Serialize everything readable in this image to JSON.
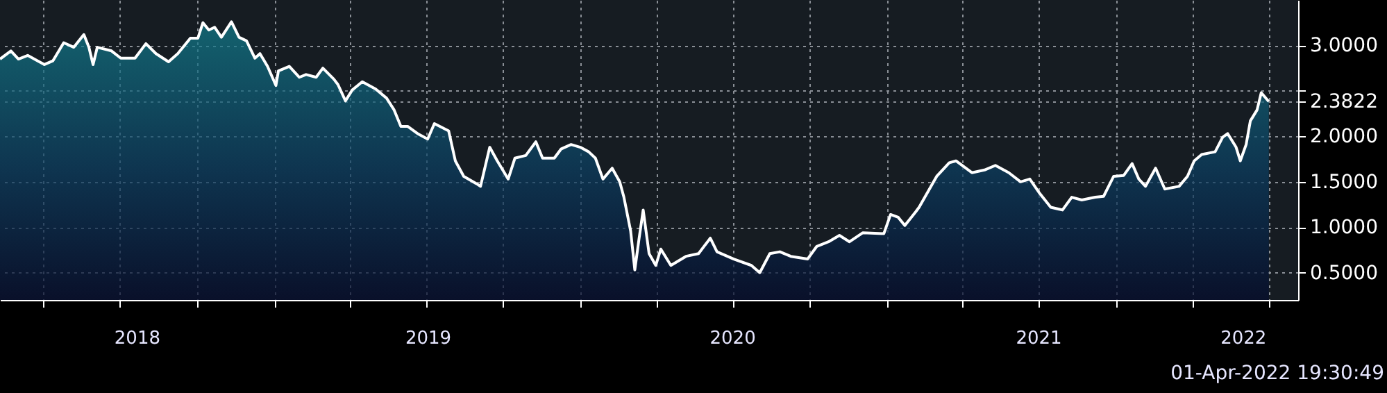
{
  "chart_data": {
    "type": "area",
    "xlim": [
      "2018-02-08",
      "2022-05-06"
    ],
    "ylim": [
      0.2,
      3.5
    ],
    "yticks": [
      {
        "value": 0.5,
        "label": "0.5000"
      },
      {
        "value": 1.0,
        "label": "1.0000"
      },
      {
        "value": 1.5,
        "label": "1.5000"
      },
      {
        "value": 2.0,
        "label": "2.0000"
      },
      {
        "value": 2.3822,
        "label": "2.3822"
      },
      {
        "value": 2.5,
        "label": null
      },
      {
        "value": 3.0,
        "label": "3.0000"
      }
    ],
    "xticks": [
      {
        "value": "2018-04-01",
        "label": null
      },
      {
        "value": "2018-07-01",
        "label": null
      },
      {
        "value": "2018-10-01",
        "label": null
      },
      {
        "value": "2019-01-01",
        "label": null
      },
      {
        "value": "2019-04-01",
        "label": null
      },
      {
        "value": "2019-07-01",
        "label": null
      },
      {
        "value": "2019-10-01",
        "label": null
      },
      {
        "value": "2020-01-01",
        "label": null
      },
      {
        "value": "2020-04-01",
        "label": null
      },
      {
        "value": "2020-07-01",
        "label": null
      },
      {
        "value": "2020-10-01",
        "label": null
      },
      {
        "value": "2021-01-01",
        "label": null
      },
      {
        "value": "2021-04-01",
        "label": null
      },
      {
        "value": "2021-07-01",
        "label": null
      },
      {
        "value": "2021-10-01",
        "label": null
      },
      {
        "value": "2022-01-01",
        "label": null
      },
      {
        "value": "2022-04-01",
        "label": null
      },
      {
        "value": "2018-07-21",
        "label": "2018"
      },
      {
        "value": "2019-07-03",
        "label": "2019"
      },
      {
        "value": "2020-06-30",
        "label": "2020"
      },
      {
        "value": "2021-06-30",
        "label": "2021"
      },
      {
        "value": "2022-03-01",
        "label": "2022"
      }
    ],
    "grid": true,
    "annotations": [
      "01-Apr-2022 19:30:49"
    ],
    "series": [
      {
        "color": "#ffffff",
        "x": [
          "2018-02-08",
          "2018-02-21",
          "2018-03-02",
          "2018-03-13",
          "2018-03-25",
          "2018-04-02",
          "2018-04-12",
          "2018-04-25",
          "2018-05-07",
          "2018-05-19",
          "2018-05-25",
          "2018-05-30",
          "2018-06-04",
          "2018-06-21",
          "2018-07-02",
          "2018-07-19",
          "2018-08-01",
          "2018-08-13",
          "2018-08-28",
          "2018-09-08",
          "2018-09-23",
          "2018-10-02",
          "2018-10-08",
          "2018-10-15",
          "2018-10-22",
          "2018-10-30",
          "2018-11-11",
          "2018-11-20",
          "2018-11-29",
          "2018-12-09",
          "2018-12-15",
          "2018-12-24",
          "2019-01-03",
          "2019-01-06",
          "2019-01-19",
          "2019-01-31",
          "2019-02-08",
          "2019-02-20",
          "2019-02-28",
          "2019-03-13",
          "2019-03-18",
          "2019-03-27",
          "2019-04-04",
          "2019-04-16",
          "2019-05-02",
          "2019-05-15",
          "2019-05-24",
          "2019-06-01",
          "2019-06-09",
          "2019-06-21",
          "2019-07-03",
          "2019-07-11",
          "2019-07-28",
          "2019-08-05",
          "2019-08-15",
          "2019-08-30",
          "2019-09-04",
          "2019-09-15",
          "2019-09-24",
          "2019-10-07",
          "2019-10-15",
          "2019-10-28",
          "2019-11-09",
          "2019-11-17",
          "2019-12-01",
          "2019-12-09",
          "2019-12-21",
          "2020-01-01",
          "2020-01-11",
          "2020-01-19",
          "2020-01-28",
          "2020-02-08",
          "2020-02-17",
          "2020-02-22",
          "2020-03-01",
          "2020-03-06",
          "2020-03-11",
          "2020-03-16",
          "2020-03-23",
          "2020-03-31",
          "2020-04-06",
          "2020-04-18",
          "2020-05-06",
          "2020-05-21",
          "2020-06-04",
          "2020-06-12",
          "2020-07-02",
          "2020-07-23",
          "2020-08-02",
          "2020-08-14",
          "2020-08-26",
          "2020-09-08",
          "2020-09-28",
          "2020-10-09",
          "2020-10-23",
          "2020-11-05",
          "2020-11-17",
          "2020-12-03",
          "2020-12-28",
          "2021-01-05",
          "2021-01-14",
          "2021-01-22",
          "2021-02-04",
          "2021-02-08",
          "2021-02-24",
          "2021-03-01",
          "2021-03-16",
          "2021-03-24",
          "2021-04-12",
          "2021-04-27",
          "2021-05-10",
          "2021-05-26",
          "2021-06-09",
          "2021-06-20",
          "2021-07-02",
          "2021-07-15",
          "2021-07-29",
          "2021-08-09",
          "2021-08-21",
          "2021-09-06",
          "2021-09-16",
          "2021-09-28",
          "2021-10-10",
          "2021-10-20",
          "2021-10-28",
          "2021-11-05",
          "2021-11-17",
          "2021-11-28",
          "2021-12-15",
          "2021-12-25",
          "2022-01-02",
          "2022-01-11",
          "2022-01-27",
          "2022-02-05",
          "2022-02-11",
          "2022-02-21",
          "2022-02-26",
          "2022-03-05",
          "2022-03-10",
          "2022-03-18",
          "2022-03-23",
          "2022-04-01"
        ],
        "values": [
          2.85,
          2.94,
          2.85,
          2.89,
          2.83,
          2.79,
          2.83,
          3.03,
          2.98,
          3.12,
          2.98,
          2.79,
          2.98,
          2.94,
          2.86,
          2.86,
          3.02,
          2.91,
          2.82,
          2.91,
          3.08,
          3.08,
          3.25,
          3.17,
          3.2,
          3.09,
          3.26,
          3.09,
          3.05,
          2.86,
          2.91,
          2.77,
          2.56,
          2.72,
          2.77,
          2.65,
          2.68,
          2.65,
          2.75,
          2.63,
          2.57,
          2.39,
          2.51,
          2.6,
          2.52,
          2.42,
          2.29,
          2.11,
          2.11,
          2.03,
          1.97,
          2.14,
          2.06,
          1.73,
          1.56,
          1.48,
          1.45,
          1.88,
          1.73,
          1.53,
          1.76,
          1.79,
          1.94,
          1.76,
          1.76,
          1.86,
          1.91,
          1.88,
          1.83,
          1.76,
          1.53,
          1.65,
          1.5,
          1.33,
          0.96,
          0.53,
          0.87,
          1.19,
          0.71,
          0.58,
          0.76,
          0.58,
          0.68,
          0.71,
          0.88,
          0.73,
          0.65,
          0.58,
          0.5,
          0.71,
          0.73,
          0.68,
          0.65,
          0.79,
          0.84,
          0.91,
          0.84,
          0.94,
          0.93,
          1.14,
          1.11,
          1.02,
          1.17,
          1.22,
          1.48,
          1.56,
          1.71,
          1.73,
          1.6,
          1.63,
          1.68,
          1.6,
          1.5,
          1.53,
          1.37,
          1.22,
          1.19,
          1.33,
          1.3,
          1.33,
          1.34,
          1.56,
          1.57,
          1.7,
          1.53,
          1.45,
          1.65,
          1.42,
          1.45,
          1.56,
          1.73,
          1.8,
          1.83,
          1.99,
          2.03,
          1.88,
          1.73,
          1.91,
          2.17,
          2.29,
          2.48,
          2.3822
        ]
      }
    ]
  }
}
